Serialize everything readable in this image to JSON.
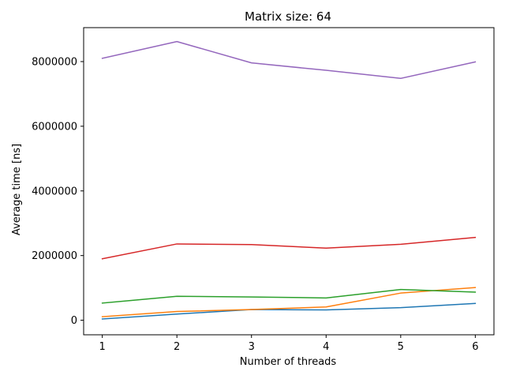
{
  "chart_data": {
    "type": "line",
    "title": "Matrix size: 64",
    "xlabel": "Number of threads",
    "ylabel": "Average time [ns]",
    "x": [
      1,
      2,
      3,
      4,
      5,
      6
    ],
    "xlim": [
      0.75,
      6.25
    ],
    "ylim": [
      -450000,
      9050000
    ],
    "xticks": [
      1,
      2,
      3,
      4,
      5,
      6
    ],
    "yticks": [
      0,
      2000000,
      4000000,
      6000000,
      8000000
    ],
    "ytick_labels": [
      "0",
      "2000000",
      "4000000",
      "6000000",
      "8000000"
    ],
    "grid": false,
    "legend": "none",
    "series": [
      {
        "color": "#1f77b4",
        "values": [
          40000,
          190000,
          330000,
          320000,
          390000,
          520000
        ]
      },
      {
        "color": "#ff7f0e",
        "values": [
          110000,
          270000,
          330000,
          410000,
          840000,
          1010000
        ]
      },
      {
        "color": "#2ca02c",
        "values": [
          530000,
          740000,
          720000,
          690000,
          950000,
          870000
        ]
      },
      {
        "color": "#d62728",
        "values": [
          1900000,
          2360000,
          2340000,
          2230000,
          2350000,
          2560000
        ]
      },
      {
        "color": "#9467bd",
        "values": [
          8100000,
          8620000,
          7960000,
          7730000,
          7480000,
          7990000
        ]
      }
    ]
  }
}
